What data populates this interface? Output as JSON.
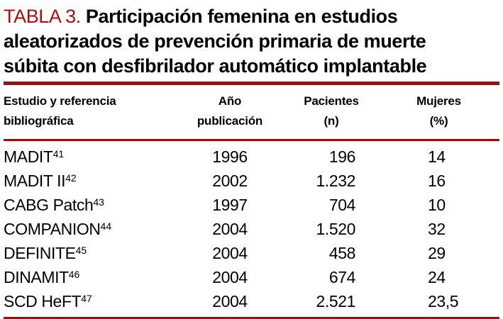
{
  "title": {
    "label": "TABLA 3.",
    "line1": "Participación femenina en estudios",
    "line2": "aleatorizados de prevención primaria de muerte",
    "line3": "súbita con desfibrilador automático implantable"
  },
  "colors": {
    "accent_red_text": "#b30b0e",
    "rule_red": "#9a0f10",
    "body_text": "#000000",
    "background": "#ffffff"
  },
  "table": {
    "headers": [
      {
        "line1": "Estudio y referencia",
        "line2": "bibliográfica"
      },
      {
        "line1": "Año",
        "line2": "publicación"
      },
      {
        "line1": "Pacientes",
        "line2": "(n)"
      },
      {
        "line1": "Mujeres",
        "line2": "(%)"
      }
    ],
    "rows": [
      {
        "study": "MADIT",
        "ref": "41",
        "year": "1996",
        "patients": "196",
        "women": "14"
      },
      {
        "study": "MADIT II",
        "ref": "42",
        "year": "2002",
        "patients": "1.232",
        "women": "16"
      },
      {
        "study": "CABG Patch",
        "ref": "43",
        "year": "1997",
        "patients": "704",
        "women": "10"
      },
      {
        "study": "COMPANION",
        "ref": "44",
        "year": "2004",
        "patients": "1.520",
        "women": "32"
      },
      {
        "study": "DEFINITE",
        "ref": "45",
        "year": "2004",
        "patients": "458",
        "women": "29"
      },
      {
        "study": "DINAMIT",
        "ref": "46",
        "year": "2004",
        "patients": "674",
        "women": "24"
      },
      {
        "study": "SCD HeFT",
        "ref": "47",
        "year": "2004",
        "patients": "2.521",
        "women": "23,5"
      }
    ]
  }
}
